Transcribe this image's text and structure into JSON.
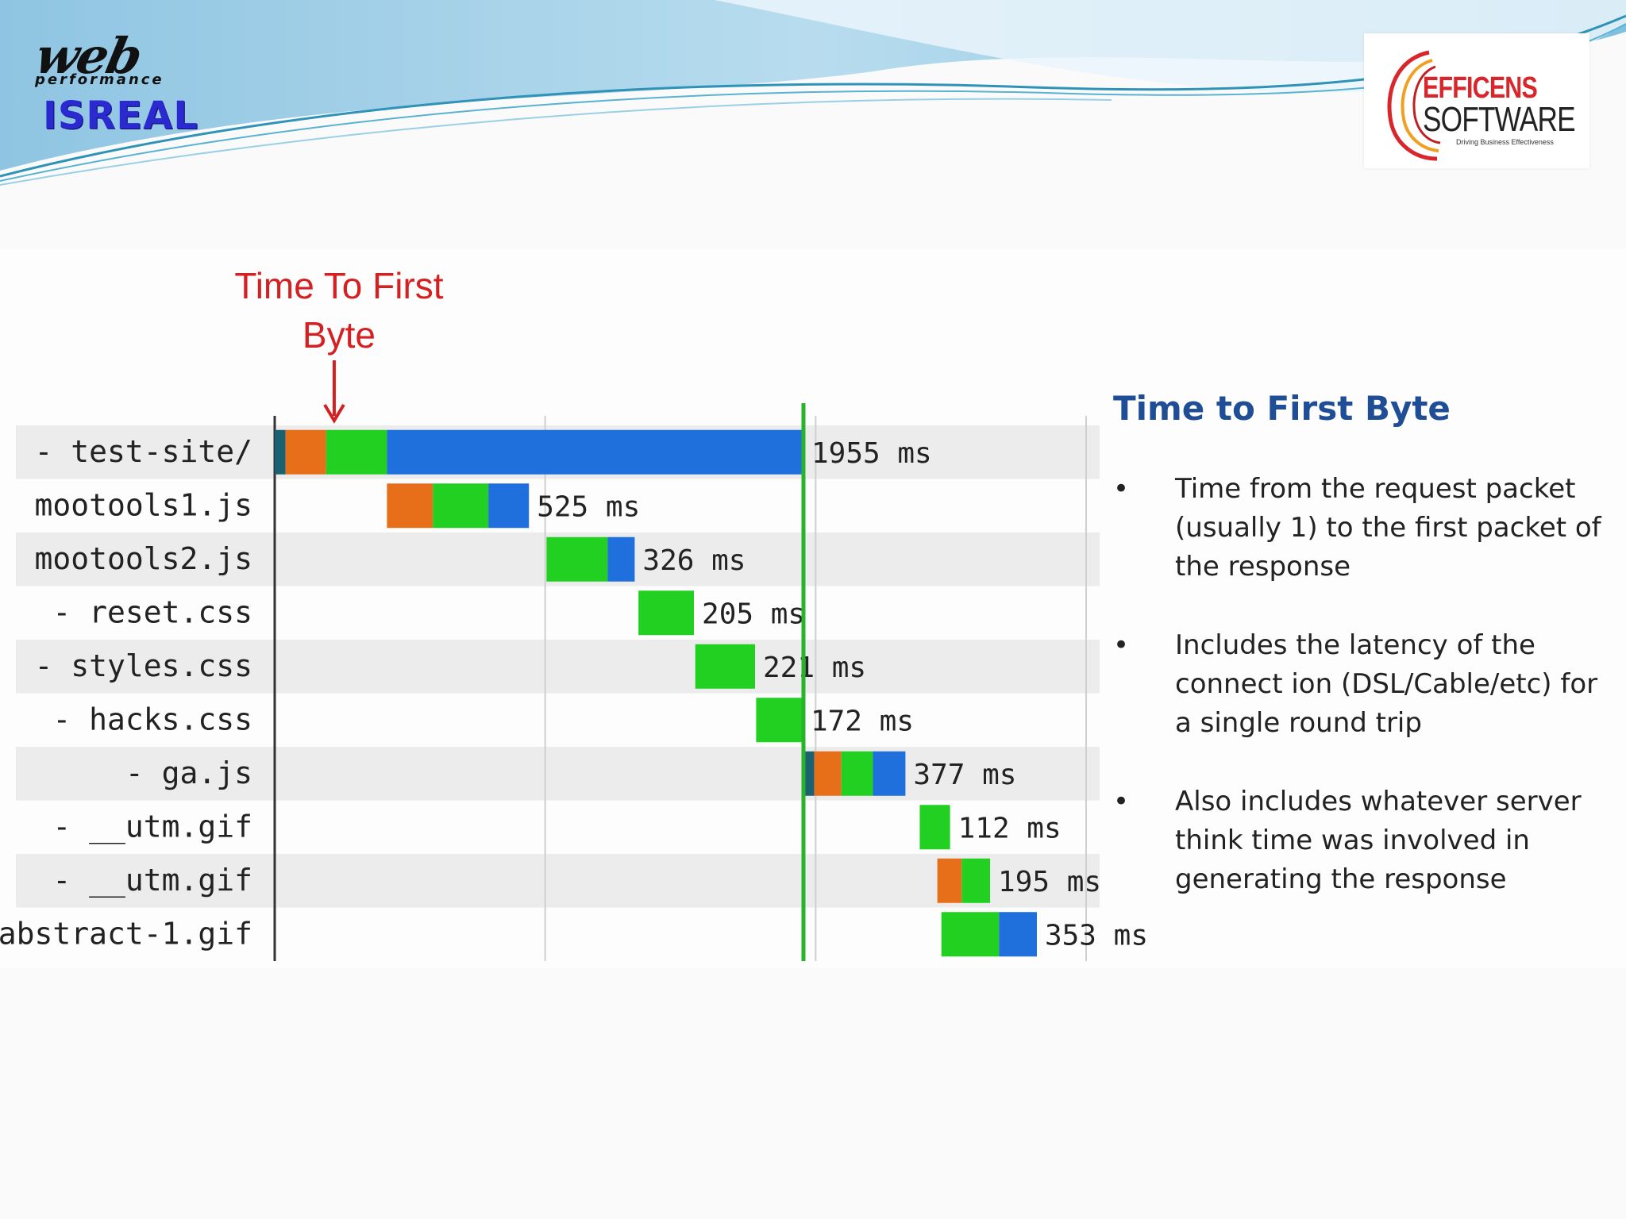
{
  "header": {
    "left_logo": {
      "word": "web",
      "sub": "performance",
      "name": "ISREAL"
    },
    "right_logo": {
      "name_line1": "EFFICENS",
      "name_line2": "SOFTWARE",
      "tagline": "Driving Business Effectiveness"
    }
  },
  "annotation": {
    "label": "Time To First Byte",
    "color": "#d42020"
  },
  "side": {
    "title": "Time to First Byte",
    "bullets": [
      "Time from the request packet (usually 1) to the first packet of the response",
      "Includes the latency of the connect ion  (DSL/Cable/etc) for a single round trip",
      "Also includes whatever server think time was involved in generating the response"
    ]
  },
  "colors": {
    "teal": "#1a6272",
    "orange": "#e86f1a",
    "green": "#22d022",
    "blue": "#1f6fdc",
    "marker": "#28b428",
    "title": "#1f4e96"
  },
  "chart_data": {
    "type": "waterfall",
    "title": "Time To First Byte",
    "x_unit": "ms",
    "xlim": [
      0,
      3050
    ],
    "gridlines": [
      0,
      1000,
      2000,
      3000
    ],
    "marker_line": 1955,
    "rows": [
      {
        "label": "- test-site/",
        "duration_label": "1955 ms",
        "start": 0,
        "segments": [
          {
            "phase": "dns",
            "ms": 40
          },
          {
            "phase": "connect",
            "ms": 150
          },
          {
            "phase": "ttfb",
            "ms": 225
          },
          {
            "phase": "download",
            "ms": 1540
          }
        ]
      },
      {
        "label": "mootools1.js",
        "duration_label": "525 ms",
        "start": 415,
        "segments": [
          {
            "phase": "connect",
            "ms": 170
          },
          {
            "phase": "ttfb",
            "ms": 205
          },
          {
            "phase": "download",
            "ms": 150
          }
        ]
      },
      {
        "label": "mootools2.js",
        "duration_label": "326 ms",
        "start": 1005,
        "segments": [
          {
            "phase": "ttfb",
            "ms": 226
          },
          {
            "phase": "download",
            "ms": 100
          }
        ]
      },
      {
        "label": "- reset.css",
        "duration_label": "205 ms",
        "start": 1345,
        "segments": [
          {
            "phase": "ttfb",
            "ms": 205
          }
        ]
      },
      {
        "label": "- styles.css",
        "duration_label": "221 ms",
        "start": 1555,
        "segments": [
          {
            "phase": "ttfb",
            "ms": 221
          }
        ]
      },
      {
        "label": "- hacks.css",
        "duration_label": "172 ms",
        "start": 1780,
        "segments": [
          {
            "phase": "ttfb",
            "ms": 172
          }
        ]
      },
      {
        "label": "- ga.js",
        "duration_label": "377 ms",
        "start": 1955,
        "segments": [
          {
            "phase": "dns",
            "ms": 40
          },
          {
            "phase": "connect",
            "ms": 100
          },
          {
            "phase": "ttfb",
            "ms": 117
          },
          {
            "phase": "download",
            "ms": 120
          }
        ]
      },
      {
        "label": "- __utm.gif",
        "duration_label": "112 ms",
        "start": 2385,
        "segments": [
          {
            "phase": "ttfb",
            "ms": 112
          }
        ]
      },
      {
        "label": "- __utm.gif",
        "duration_label": "195 ms",
        "start": 2450,
        "segments": [
          {
            "phase": "connect",
            "ms": 90
          },
          {
            "phase": "ttfb",
            "ms": 105
          }
        ]
      },
      {
        "label": "abstract-1.gif",
        "duration_label": "353 ms",
        "start": 2465,
        "segments": [
          {
            "phase": "ttfb",
            "ms": 213
          },
          {
            "phase": "download",
            "ms": 140
          }
        ]
      }
    ]
  }
}
